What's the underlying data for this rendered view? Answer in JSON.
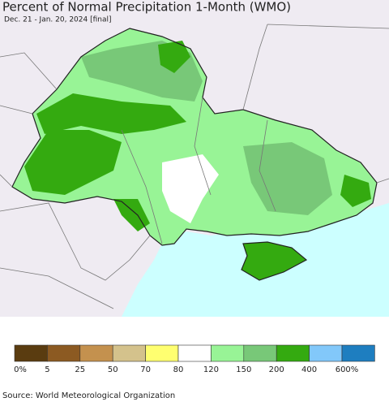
{
  "header": {
    "title": "Percent of Normal Precipitation 1-Month (WMO)",
    "subtitle": "Dec. 21 - Jan. 20, 2024 [final]"
  },
  "legend": [
    {
      "label": "0%",
      "color": "#5a3c10"
    },
    {
      "label": "5",
      "color": "#8c5a22"
    },
    {
      "label": "25",
      "color": "#c4914e"
    },
    {
      "label": "50",
      "color": "#d4c28c"
    },
    {
      "label": "70",
      "color": "#ffff70"
    },
    {
      "label": "80",
      "color": "#ffffff"
    },
    {
      "label": "120",
      "color": "#98f496"
    },
    {
      "label": "150",
      "color": "#78c878"
    },
    {
      "label": "200",
      "color": "#34aa10"
    },
    {
      "label": "400",
      "color": "#82c8fa"
    },
    {
      "label": "600%",
      "color": "#1e7ec0"
    }
  ],
  "footer": {
    "source": "Source: World Meteorological Organization"
  }
}
